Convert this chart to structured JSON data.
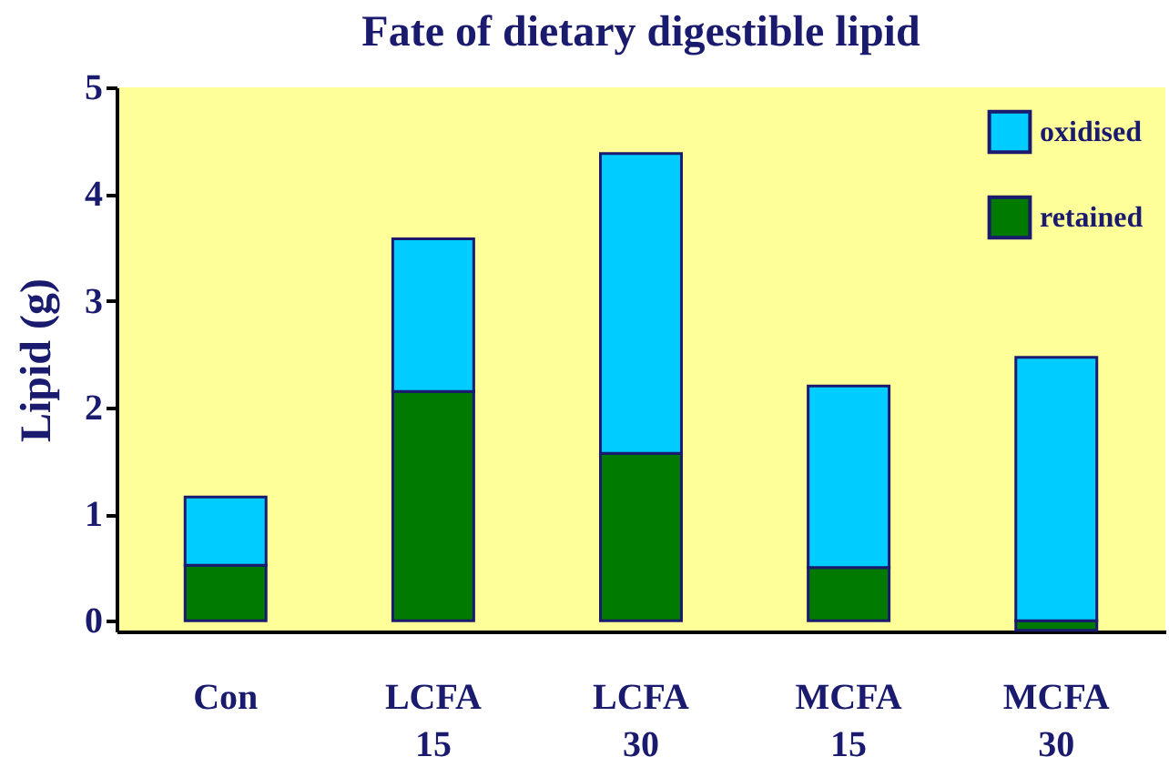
{
  "chart_data": {
    "type": "bar",
    "title": "Fate of dietary digestible lipid",
    "ylabel": "Lipid (g)",
    "categories": [
      "Con",
      "LCFA\n15",
      "LCFA\n30",
      "MCFA\n15",
      "MCFA\n30"
    ],
    "stacked": true,
    "series": [
      {
        "name": "retained",
        "color": "#007a00",
        "values": [
          0.52,
          2.15,
          1.57,
          0.5,
          -0.09
        ]
      },
      {
        "name": "oxidised",
        "color": "#00ccff",
        "values": [
          0.64,
          1.43,
          2.81,
          1.7,
          2.47
        ]
      }
    ],
    "ylim": [
      -0.1,
      5
    ],
    "yticks": [
      0,
      1,
      2,
      3,
      4,
      5
    ],
    "legend": "top right"
  }
}
